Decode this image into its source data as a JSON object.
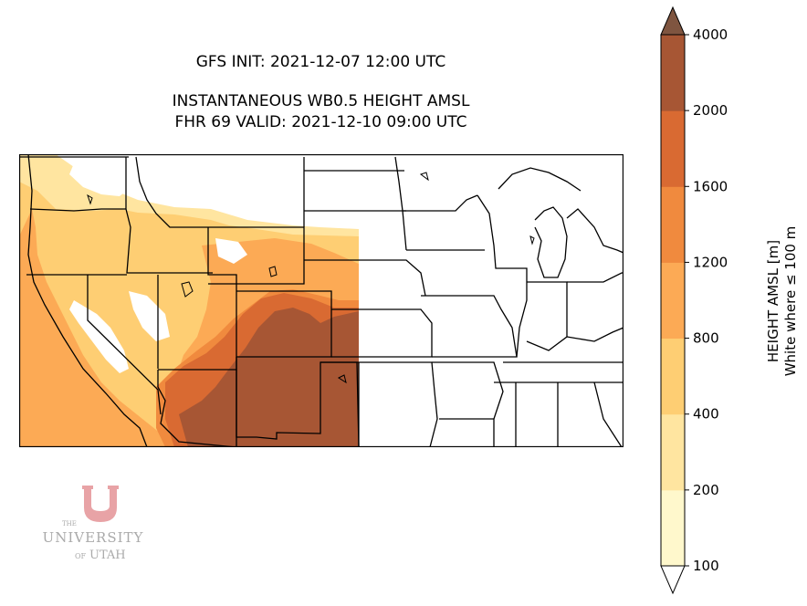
{
  "header": {
    "init": "GFS INIT: 2021-12-07 12:00 UTC",
    "field": "INSTANTANEOUS WB0.5 HEIGHT AMSL",
    "valid": "FHR 69 VALID: 2021-12-10 09:00 UTC"
  },
  "colorbar": {
    "levels": [
      "100",
      "200",
      "400",
      "800",
      "1200",
      "1600",
      "2000",
      "4000"
    ],
    "colors": [
      "#fff8cc",
      "#ffe5a0",
      "#fece73",
      "#fcaa55",
      "#f08a3e",
      "#d96a32",
      "#a75634",
      "#7f5540"
    ],
    "label_line1": "HEIGHT AMSL [m]",
    "label_line2": "White where ≤ 100 m"
  },
  "logo": {
    "the": "THE",
    "university": "UNIVERSITY",
    "of": "OF",
    "utah": "UTAH",
    "color": "#e8a3a6"
  }
}
